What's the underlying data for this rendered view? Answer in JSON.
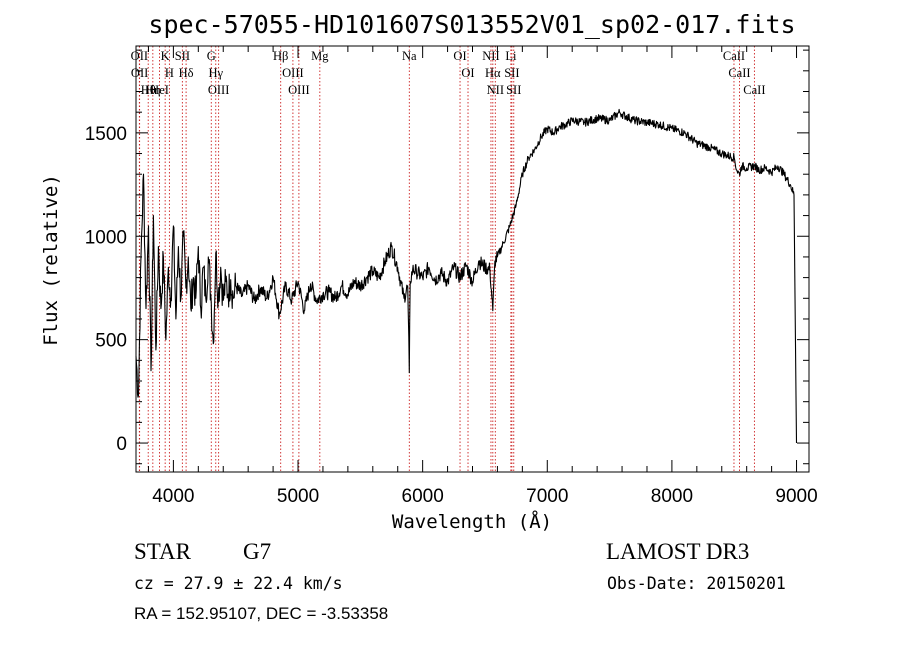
{
  "chart_data": {
    "type": "line",
    "title": "spec-57055-HD101607S013552V01_sp02-017.fits",
    "xlabel": "Wavelength (Å)",
    "ylabel": "Flux (relative)",
    "xlim": [
      3700,
      9100
    ],
    "ylim": [
      -140,
      1920
    ],
    "xticks": [
      4000,
      5000,
      6000,
      7000,
      8000,
      9000
    ],
    "xtick_labels": [
      "4000",
      "5000",
      "6000",
      "7000",
      "8000",
      "9000"
    ],
    "yticks": [
      0,
      500,
      1000,
      1500
    ],
    "ytick_labels": [
      "0",
      "500",
      "1000",
      "1500"
    ],
    "series": [
      {
        "name": "flux",
        "x": [
          3700,
          3720,
          3740,
          3760,
          3780,
          3800,
          3820,
          3840,
          3860,
          3880,
          3900,
          3920,
          3940,
          3960,
          3980,
          4000,
          4020,
          4040,
          4060,
          4080,
          4100,
          4120,
          4140,
          4160,
          4180,
          4200,
          4220,
          4240,
          4260,
          4280,
          4300,
          4320,
          4340,
          4360,
          4380,
          4400,
          4420,
          4440,
          4460,
          4480,
          4500,
          4550,
          4600,
          4650,
          4700,
          4750,
          4800,
          4850,
          4900,
          4950,
          5000,
          5050,
          5100,
          5150,
          5200,
          5250,
          5300,
          5350,
          5400,
          5450,
          5500,
          5550,
          5600,
          5650,
          5700,
          5750,
          5800,
          5850,
          5880,
          5893,
          5900,
          5920,
          5950,
          6000,
          6050,
          6100,
          6150,
          6200,
          6250,
          6300,
          6350,
          6400,
          6450,
          6500,
          6540,
          6563,
          6580,
          6600,
          6650,
          6700,
          6750,
          6800,
          6850,
          6900,
          6950,
          7000,
          7050,
          7100,
          7150,
          7200,
          7300,
          7400,
          7500,
          7580,
          7600,
          7700,
          7800,
          7900,
          8000,
          8100,
          8200,
          8300,
          8400,
          8500,
          8520,
          8542,
          8560,
          8600,
          8662,
          8700,
          8750,
          8800,
          8850,
          8900,
          8950,
          8980,
          9000
        ],
        "values": [
          420,
          230,
          900,
          1300,
          650,
          1050,
          350,
          1100,
          450,
          950,
          650,
          900,
          500,
          850,
          700,
          1050,
          600,
          950,
          700,
          1000,
          750,
          900,
          650,
          800,
          700,
          950,
          650,
          850,
          700,
          900,
          720,
          480,
          920,
          700,
          850,
          690,
          780,
          720,
          790,
          700,
          760,
          710,
          760,
          690,
          750,
          700,
          800,
          620,
          760,
          690,
          780,
          640,
          770,
          690,
          720,
          730,
          700,
          760,
          720,
          780,
          760,
          800,
          830,
          800,
          880,
          950,
          850,
          700,
          760,
          340,
          780,
          840,
          830,
          800,
          850,
          790,
          820,
          780,
          850,
          800,
          860,
          780,
          880,
          850,
          840,
          640,
          880,
          900,
          970,
          1050,
          1150,
          1300,
          1380,
          1420,
          1480,
          1520,
          1500,
          1530,
          1540,
          1560,
          1550,
          1570,
          1560,
          1600,
          1590,
          1560,
          1550,
          1540,
          1520,
          1500,
          1450,
          1430,
          1400,
          1380,
          1320,
          1300,
          1340,
          1330,
          1340,
          1320,
          1330,
          1310,
          1340,
          1300,
          1250,
          1200,
          0
        ]
      }
    ],
    "line_markers": [
      {
        "label": "OII",
        "wavelength": 3727
      },
      {
        "label": "OII",
        "wavelength": 3729
      },
      {
        "label": "Hθ",
        "wavelength": 3798
      },
      {
        "label": "Hη",
        "wavelength": 3835
      },
      {
        "label": "HeI",
        "wavelength": 3889
      },
      {
        "label": "K",
        "wavelength": 3934
      },
      {
        "label": "H",
        "wavelength": 3968
      },
      {
        "label": "SII",
        "wavelength": 4072
      },
      {
        "label": "Hδ",
        "wavelength": 4102
      },
      {
        "label": "G",
        "wavelength": 4304
      },
      {
        "label": "Hγ",
        "wavelength": 4340
      },
      {
        "label": "OIII",
        "wavelength": 4363
      },
      {
        "label": "Hβ",
        "wavelength": 4861
      },
      {
        "label": "OIII",
        "wavelength": 4959
      },
      {
        "label": "OIII",
        "wavelength": 5007
      },
      {
        "label": "Mg",
        "wavelength": 5175
      },
      {
        "label": "Na",
        "wavelength": 5893
      },
      {
        "label": "OI",
        "wavelength": 6300
      },
      {
        "label": "OI",
        "wavelength": 6364
      },
      {
        "label": "NII",
        "wavelength": 6548
      },
      {
        "label": "Hα",
        "wavelength": 6563
      },
      {
        "label": "NII",
        "wavelength": 6583
      },
      {
        "label": "Li",
        "wavelength": 6708
      },
      {
        "label": "SII",
        "wavelength": 6716
      },
      {
        "label": "SII",
        "wavelength": 6731
      },
      {
        "label": "CaII",
        "wavelength": 8498
      },
      {
        "label": "CaII",
        "wavelength": 8542
      },
      {
        "label": "CaII",
        "wavelength": 8662
      }
    ],
    "line_marker_color": "#cc2222"
  },
  "info": {
    "class": "STAR",
    "subclass": "G7",
    "cz": "cz = 27.9 ± 22.4 km/s",
    "coords": "RA = 152.95107, DEC =  -3.53358",
    "survey": "LAMOST DR3",
    "obs_date": "Obs-Date: 20150201"
  }
}
